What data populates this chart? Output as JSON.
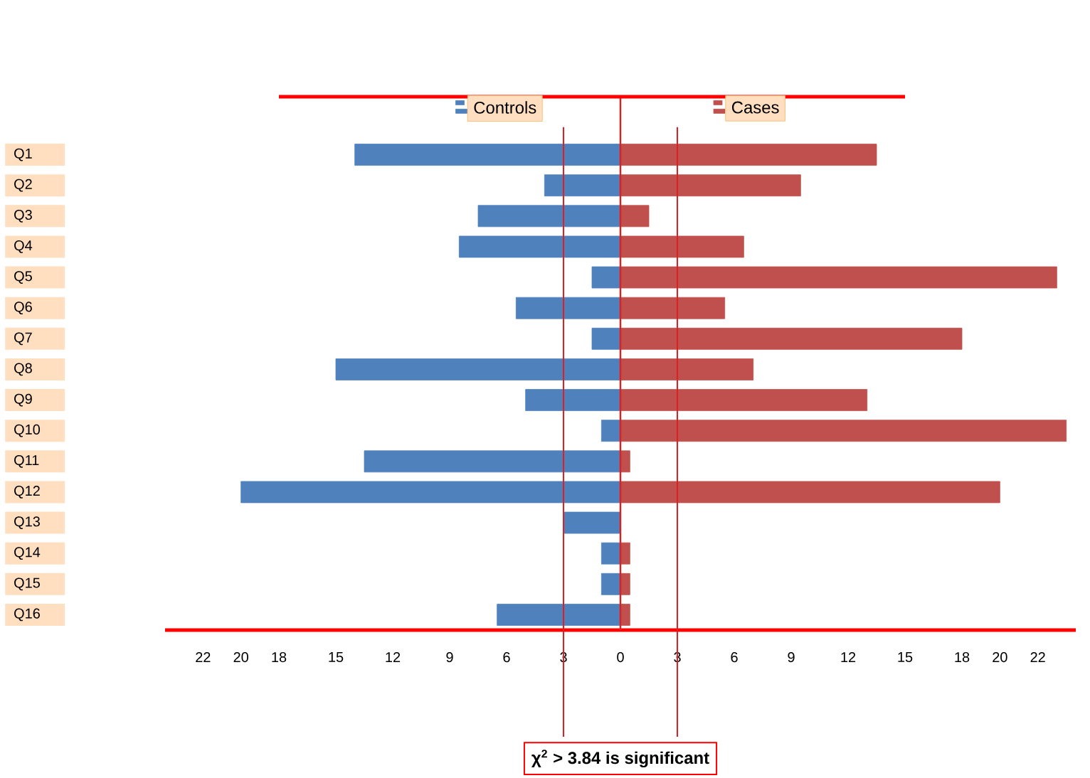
{
  "chart_data": {
    "type": "bar",
    "orientation": "horizontal",
    "categories": [
      "Q1",
      "Q2",
      "Q3",
      "Q4",
      "Q5",
      "Q6",
      "Q7",
      "Q8",
      "Q9",
      "Q10",
      "Q11",
      "Q12",
      "Q13",
      "Q14",
      "Q15",
      "Q16"
    ],
    "series": [
      {
        "name": "Controls",
        "color": "#4f81bd",
        "values": [
          -14,
          -4,
          -7.5,
          -8.5,
          -1.5,
          -5.5,
          -1.5,
          -15,
          -5,
          -1,
          -13.5,
          -20,
          -3,
          -1,
          -1,
          -6.5
        ]
      },
      {
        "name": "Cases",
        "color": "#c0504d",
        "values": [
          13.5,
          9.5,
          1.5,
          6.5,
          23,
          5.5,
          18,
          7,
          13,
          23.5,
          0.5,
          20,
          0,
          0.5,
          0.5,
          0.5
        ]
      }
    ],
    "xlim": [
      -24,
      24
    ],
    "xticks": [
      {
        "value": -22,
        "label": "22"
      },
      {
        "value": -20,
        "label": "20"
      },
      {
        "value": -18,
        "label": "18"
      },
      {
        "value": -15,
        "label": "15"
      },
      {
        "value": -12,
        "label": "12"
      },
      {
        "value": -9,
        "label": "9"
      },
      {
        "value": -6,
        "label": "6"
      },
      {
        "value": -3,
        "label": "3"
      },
      0,
      3,
      6,
      9,
      12,
      15,
      18,
      20,
      22
    ],
    "ref_lines": [
      {
        "axis": "x",
        "value": 0,
        "color": "#e02020"
      },
      {
        "axis": "x",
        "value": -3,
        "color": "#e02020"
      },
      {
        "axis": "x",
        "value": 3,
        "color": "#e02020"
      }
    ],
    "annotations": [
      "χ$^{2}$ > 3.84 is significant"
    ],
    "legend": "top",
    "grid": false,
    "stacked": true
  }
}
